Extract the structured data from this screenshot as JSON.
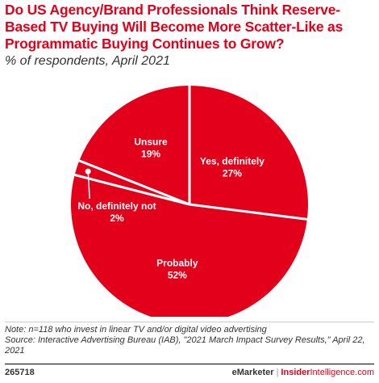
{
  "header": {
    "title": "Do US Agency/Brand Professionals Think Reserve-Based TV Buying Will Become More Scatter-Like as Programmatic Buying Continues to Grow?",
    "subtitle": "% of respondents, April 2021"
  },
  "chart_data": {
    "type": "pie",
    "title": "Do US Agency/Brand Professionals Think Reserve-Based TV Buying Will Become More Scatter-Like as Programmatic Buying Continues to Grow?",
    "subtitle": "% of respondents, April 2021",
    "slices": [
      {
        "label": "Yes, definitely",
        "value": 27,
        "value_label": "27%"
      },
      {
        "label": "Probably",
        "value": 52,
        "value_label": "52%"
      },
      {
        "label": "No, definitely not",
        "value": 2,
        "value_label": "2%"
      },
      {
        "label": "Unsure",
        "value": 19,
        "value_label": "19%"
      }
    ],
    "colors": {
      "slice": "#e2001a",
      "separator": "#ffffff",
      "label_text": "#ffffff"
    }
  },
  "footer": {
    "note": "Note: n=118 who invest in linear TV and/or digital video advertising",
    "source": "Source: Interactive Advertising Bureau (IAB), \"2021 March Impact Survey Results,\" April 22, 2021",
    "chart_id": "265718",
    "brand_left": "eMarketer",
    "brand_separator": "|",
    "brand_right_prefix": "Insider",
    "brand_right_suffix": "Intelligence.com"
  }
}
